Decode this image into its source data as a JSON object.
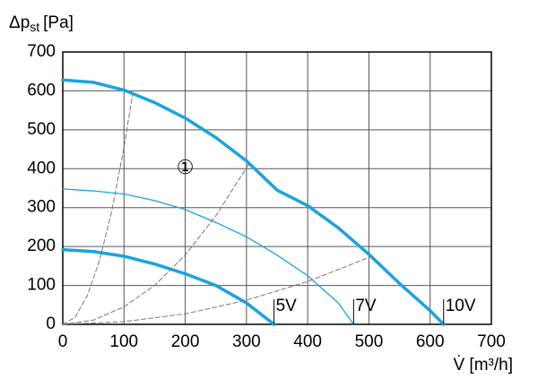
{
  "chart_data": {
    "type": "line",
    "y_label": "Δp",
    "y_label_sub": "st",
    "y_label_unit": "[Pa]",
    "x_label": "V̇ [m³/h]",
    "xlim": [
      0,
      700
    ],
    "xticks": [
      0,
      100,
      200,
      300,
      400,
      500,
      600,
      700
    ],
    "ylim": [
      0,
      700
    ],
    "yticks": [
      0,
      100,
      200,
      300,
      400,
      500,
      600,
      700
    ],
    "grid": true,
    "annotations": [
      {
        "text": "①",
        "x": 200,
        "y": 400
      }
    ],
    "series": [
      {
        "name": "10V",
        "color": "#1aa3e0",
        "width": 3.5,
        "x": [
          0,
          50,
          100,
          150,
          200,
          250,
          300,
          350,
          400,
          450,
          500,
          550,
          600,
          622
        ],
        "values": [
          628,
          622,
          602,
          570,
          530,
          480,
          420,
          345,
          305,
          248,
          180,
          105,
          35,
          0
        ]
      },
      {
        "name": "7V",
        "color": "#1aa3e0",
        "width": 1.3,
        "x": [
          0,
          50,
          100,
          150,
          200,
          250,
          300,
          350,
          400,
          450,
          475
        ],
        "values": [
          348,
          343,
          335,
          318,
          295,
          262,
          225,
          178,
          125,
          55,
          0
        ]
      },
      {
        "name": "5V",
        "color": "#1aa3e0",
        "width": 3.5,
        "x": [
          0,
          50,
          100,
          150,
          200,
          250,
          300,
          345
        ],
        "values": [
          192,
          187,
          175,
          155,
          130,
          100,
          55,
          0
        ]
      },
      {
        "color": "#777777",
        "width": 1,
        "dash": true,
        "x": [
          0,
          20,
          40,
          60,
          80,
          100,
          114
        ],
        "values": [
          0,
          18,
          73,
          164,
          291,
          455,
          592
        ]
      },
      {
        "color": "#777777",
        "width": 1,
        "dash": true,
        "x": [
          0,
          50,
          100,
          150,
          200,
          250,
          305
        ],
        "values": [
          0,
          11,
          45,
          100,
          178,
          279,
          415
        ]
      },
      {
        "color": "#777777",
        "width": 1,
        "dash": true,
        "x": [
          0,
          100,
          200,
          300,
          400,
          505
        ],
        "values": [
          0,
          7,
          27,
          62,
          110,
          175
        ]
      }
    ]
  }
}
